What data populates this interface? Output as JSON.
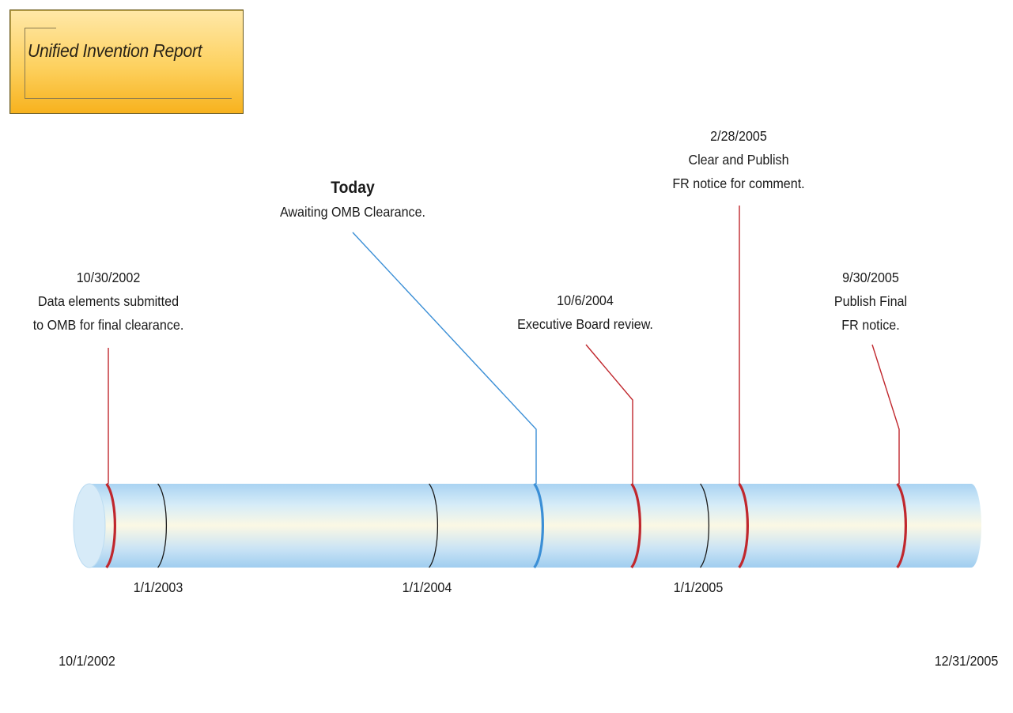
{
  "title": "Unified Invention Report",
  "colors": {
    "milestone": "#c0272d",
    "today": "#3b8fd6",
    "year_marker": "#1a1a1a",
    "title_box_top": "#ffe8a8",
    "title_box_bottom": "#f7b21e"
  },
  "timeline": {
    "start_label": "10/1/2002",
    "end_label": "12/31/2005",
    "year_markers": [
      {
        "label": "1/1/2003"
      },
      {
        "label": "1/1/2004"
      },
      {
        "label": "1/1/2005"
      }
    ]
  },
  "milestones": [
    {
      "date": "10/30/2002",
      "line1": "Data elements submitted",
      "line2": "to OMB for final clearance.",
      "kind": "milestone"
    },
    {
      "date": "Today",
      "line1": "Awaiting OMB Clearance.",
      "line2": "",
      "kind": "today"
    },
    {
      "date": "10/6/2004",
      "line1": "Executive Board review.",
      "line2": "",
      "kind": "milestone"
    },
    {
      "date": "2/28/2005",
      "line1": "Clear and Publish",
      "line2": "FR notice for comment.",
      "kind": "milestone"
    },
    {
      "date": "9/30/2005",
      "line1": "Publish Final",
      "line2": "FR notice.",
      "kind": "milestone"
    }
  ]
}
